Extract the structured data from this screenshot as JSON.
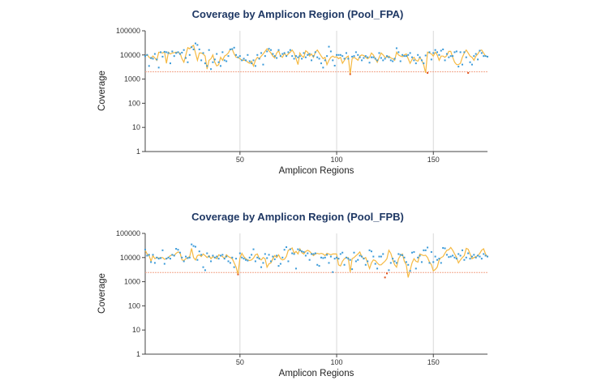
{
  "colors": {
    "dot": "#3a9ad9",
    "dot_below_threshold": "#e0531e",
    "line": "#f5b942",
    "threshold": "#f2a58a",
    "grid": "#d9d9d9",
    "title": "#1f3864"
  },
  "chart_data": [
    {
      "type": "line",
      "title": "Coverage by Amplicon Region (Pool_FPA)",
      "xlabel": "Amplicon Regions",
      "ylabel": "Coverage",
      "xlim": [
        1,
        178
      ],
      "ylim": [
        1,
        100000
      ],
      "yscale": "log",
      "xticks": [
        "50",
        "100",
        "150"
      ],
      "yticks": [
        "1",
        "10",
        "100",
        "1000",
        "10000",
        "100000"
      ],
      "grid": "vertical",
      "threshold": 2000,
      "line_values": [
        9000,
        10500,
        8000,
        7000,
        9000,
        7500,
        6000,
        13000,
        12500,
        12000,
        13500,
        4500,
        13000,
        11000,
        12000,
        12500,
        13000,
        12500,
        12000,
        7000,
        5000,
        10000,
        20000,
        18000,
        22000,
        25000,
        12000,
        6000,
        12000,
        12000,
        11000,
        9000,
        2600,
        6000,
        7000,
        10000,
        5000,
        3500,
        4000,
        8000,
        6000,
        9000,
        10000,
        12000,
        17000,
        17000,
        11000,
        8000,
        8000,
        7000,
        6000,
        6000,
        6000,
        5000,
        4500,
        5500,
        3500,
        6000,
        8000,
        7000,
        9000,
        11000,
        14000,
        18000,
        15000,
        12000,
        9000,
        7500,
        12000,
        15000,
        9000,
        8000,
        12000,
        9000,
        11000,
        13000,
        16000,
        12000,
        7000,
        4000,
        12000,
        9000,
        8000,
        15000,
        13000,
        9000,
        11000,
        8000,
        13000,
        16000,
        12000,
        9000,
        7000,
        8000,
        4000,
        6000,
        8000,
        9000,
        8000,
        8500,
        7000,
        8000,
        4500,
        6000,
        8000,
        9000,
        1600,
        7000,
        8000,
        7000,
        6000,
        9000,
        10000,
        9500,
        8000,
        7000,
        8000,
        12000,
        10000,
        7000,
        5000,
        8000,
        12000,
        10000,
        8000,
        8000,
        9000,
        7500,
        7000,
        6000,
        13000,
        10000,
        9000,
        8500,
        10000,
        11000,
        7000,
        4500,
        6500,
        8000,
        6000,
        5500,
        8000,
        6000,
        4000,
        1800,
        13000,
        12000,
        11000,
        9000,
        13000,
        10000,
        6000,
        9000,
        9000,
        8000,
        9500,
        14000,
        14000,
        8000,
        5000,
        4000,
        4000,
        4500,
        8000,
        12000,
        16000,
        12000,
        9000,
        8000,
        6000,
        9000,
        11000,
        15000,
        16000,
        12000,
        9000,
        8500
      ],
      "point_values": [
        9000,
        10000,
        3500,
        7500,
        7000,
        11000,
        6500,
        3000,
        13000,
        8500,
        13500,
        13000,
        12000,
        4500,
        14000,
        9000,
        12000,
        13000,
        11000,
        12500,
        16000,
        7500,
        5000,
        10000,
        21000,
        17000,
        30000,
        26000,
        17000,
        6000,
        12000,
        4500,
        3500,
        16000,
        2600,
        5000,
        6500,
        11000,
        5000,
        3500,
        13000,
        6000,
        5500,
        9000,
        17000,
        17500,
        20000,
        10000,
        8000,
        9000,
        6000,
        7000,
        6000,
        10000,
        5500,
        4500,
        6000,
        3500,
        10000,
        7000,
        12000,
        4000,
        9000,
        14000,
        18000,
        16000,
        11000,
        9000,
        7500,
        16000,
        9000,
        11000,
        12000,
        9000,
        13000,
        16000,
        9000,
        7000,
        9000,
        8000,
        9000,
        7000,
        12000,
        8000,
        10000,
        11000,
        6000,
        9000,
        13000,
        8000,
        7000,
        4500,
        3000,
        6000,
        9000,
        22000,
        14000,
        6000,
        3600,
        10000,
        10000,
        10000,
        9000,
        7000,
        12000,
        7000,
        1600,
        8500,
        9000,
        13000,
        10000,
        8000,
        6000,
        7500,
        9000,
        8000,
        4800,
        8000,
        8000,
        7000,
        6000,
        12000,
        7500,
        6000,
        7000,
        9000,
        8000,
        6000,
        5500,
        7000,
        19000,
        13000,
        5500,
        10000,
        9000,
        9000,
        10000,
        12000,
        8000,
        6000,
        4500,
        10000,
        8000,
        6000,
        4500,
        9500,
        1800,
        13000,
        6500,
        12000,
        16000,
        13000,
        10000,
        15000,
        17000,
        6000,
        11000,
        8000,
        9000,
        9000,
        13000,
        14000,
        3300,
        13000,
        4000,
        13000,
        8000,
        1800,
        5000,
        4000,
        9000,
        11000,
        6500,
        15000,
        12000,
        9000,
        9000,
        8500
      ]
    },
    {
      "type": "line",
      "title": "Coverage by Amplicon Region (Pool_FPB)",
      "xlabel": "Amplicon Regions",
      "ylabel": "Coverage",
      "xlim": [
        1,
        178
      ],
      "ylim": [
        1,
        100000
      ],
      "yscale": "log",
      "xticks": [
        "50",
        "100",
        "150"
      ],
      "yticks": [
        "1",
        "10",
        "100",
        "1000",
        "10000",
        "100000"
      ],
      "grid": "vertical",
      "threshold": 2400,
      "line_values": [
        20000,
        14000,
        12000,
        7000,
        12000,
        9000,
        10000,
        9500,
        10000,
        10000,
        8500,
        9000,
        10000,
        12000,
        13000,
        12000,
        15000,
        17000,
        16000,
        8000,
        7500,
        9000,
        10000,
        11000,
        24000,
        10000,
        8000,
        12000,
        13000,
        11000,
        14000,
        12000,
        10000,
        12000,
        9000,
        11000,
        10000,
        9000,
        13000,
        12000,
        11000,
        9000,
        13000,
        11000,
        10000,
        9000,
        6000,
        4000,
        2000,
        9500,
        15000,
        11000,
        9000,
        8000,
        7500,
        8000,
        9500,
        13000,
        14000,
        9000,
        8000,
        10000,
        9000,
        4000,
        5500,
        6000,
        9000,
        12000,
        10000,
        13000,
        9000,
        8000,
        8500,
        11000,
        20000,
        22000,
        25000,
        15000,
        18000,
        14000,
        23000,
        16000,
        14000,
        18000,
        20000,
        18000,
        15000,
        12000,
        14000,
        15000,
        14000,
        15000,
        14000,
        12000,
        15000,
        14000,
        13000,
        14000,
        14000,
        14000,
        5000,
        4500,
        7000,
        9000,
        10000,
        10000,
        2500,
        9000,
        10000,
        12000,
        14000,
        17000,
        11000,
        9000,
        10000,
        6000,
        3500,
        6000,
        8000,
        7500,
        6000,
        5000,
        5000,
        6000,
        7000,
        9000,
        20000,
        15000,
        8000,
        5000,
        4000,
        9000,
        12000,
        14000,
        7000,
        5000,
        1500,
        3000,
        6000,
        9000,
        7000,
        6500,
        14000,
        13000,
        12000,
        12500,
        10000,
        6500,
        5000,
        2800,
        3200,
        4000,
        8000,
        10000,
        11000,
        15000,
        20000,
        21000,
        26000,
        20000,
        14000,
        10000,
        6000,
        8000,
        10000,
        12000,
        24000,
        22000,
        14000,
        9000,
        10000,
        11000,
        12000,
        15000,
        20000,
        23000,
        14000,
        10500
      ],
      "point_values": [
        21000,
        12000,
        13000,
        6500,
        13000,
        6000,
        10000,
        9000,
        9500,
        20000,
        5500,
        9000,
        10000,
        9000,
        13000,
        12000,
        23000,
        21000,
        16000,
        10000,
        7000,
        11000,
        9500,
        10000,
        35000,
        30000,
        28000,
        8000,
        18000,
        13000,
        4000,
        3000,
        15000,
        11000,
        7000,
        12000,
        10000,
        11000,
        9000,
        12000,
        13000,
        9000,
        11000,
        7000,
        6000,
        10000,
        4000,
        9000,
        2000,
        15000,
        10000,
        9000,
        8000,
        7500,
        10000,
        13000,
        22000,
        7000,
        10000,
        9000,
        4000,
        6000,
        14000,
        9500,
        13000,
        7000,
        11000,
        8500,
        12000,
        4500,
        5500,
        10000,
        21000,
        27000,
        7000,
        22000,
        15000,
        14000,
        3500,
        22000,
        20000,
        18000,
        17000,
        12000,
        15000,
        8000,
        14000,
        14000,
        15000,
        5000,
        4500,
        10000,
        9500,
        10000,
        13000,
        6000,
        11000,
        2500,
        9000,
        10000,
        9000,
        14000,
        16000,
        5000,
        10000,
        9000,
        8000,
        3300,
        16000,
        7000,
        8000,
        12000,
        11000,
        9000,
        5000,
        7000,
        20000,
        18000,
        11000,
        5500,
        3500,
        11000,
        11000,
        14000,
        1500,
        2200,
        3000,
        6000,
        9000,
        7000,
        6000,
        14000,
        13000,
        12500,
        10000,
        6500,
        5000,
        2800,
        16000,
        17000,
        3500,
        10000,
        12000,
        6500,
        20000,
        20000,
        26000,
        6000,
        17000,
        6500,
        11000,
        8000,
        9000,
        6000,
        25000,
        24000,
        13000,
        10500,
        11000,
        12000,
        10000,
        9000,
        14000,
        12000,
        20000,
        8000,
        10000,
        15000,
        9000,
        11000,
        13000,
        10000,
        12000,
        11000,
        9000,
        14000,
        12000,
        11000
      ]
    }
  ]
}
